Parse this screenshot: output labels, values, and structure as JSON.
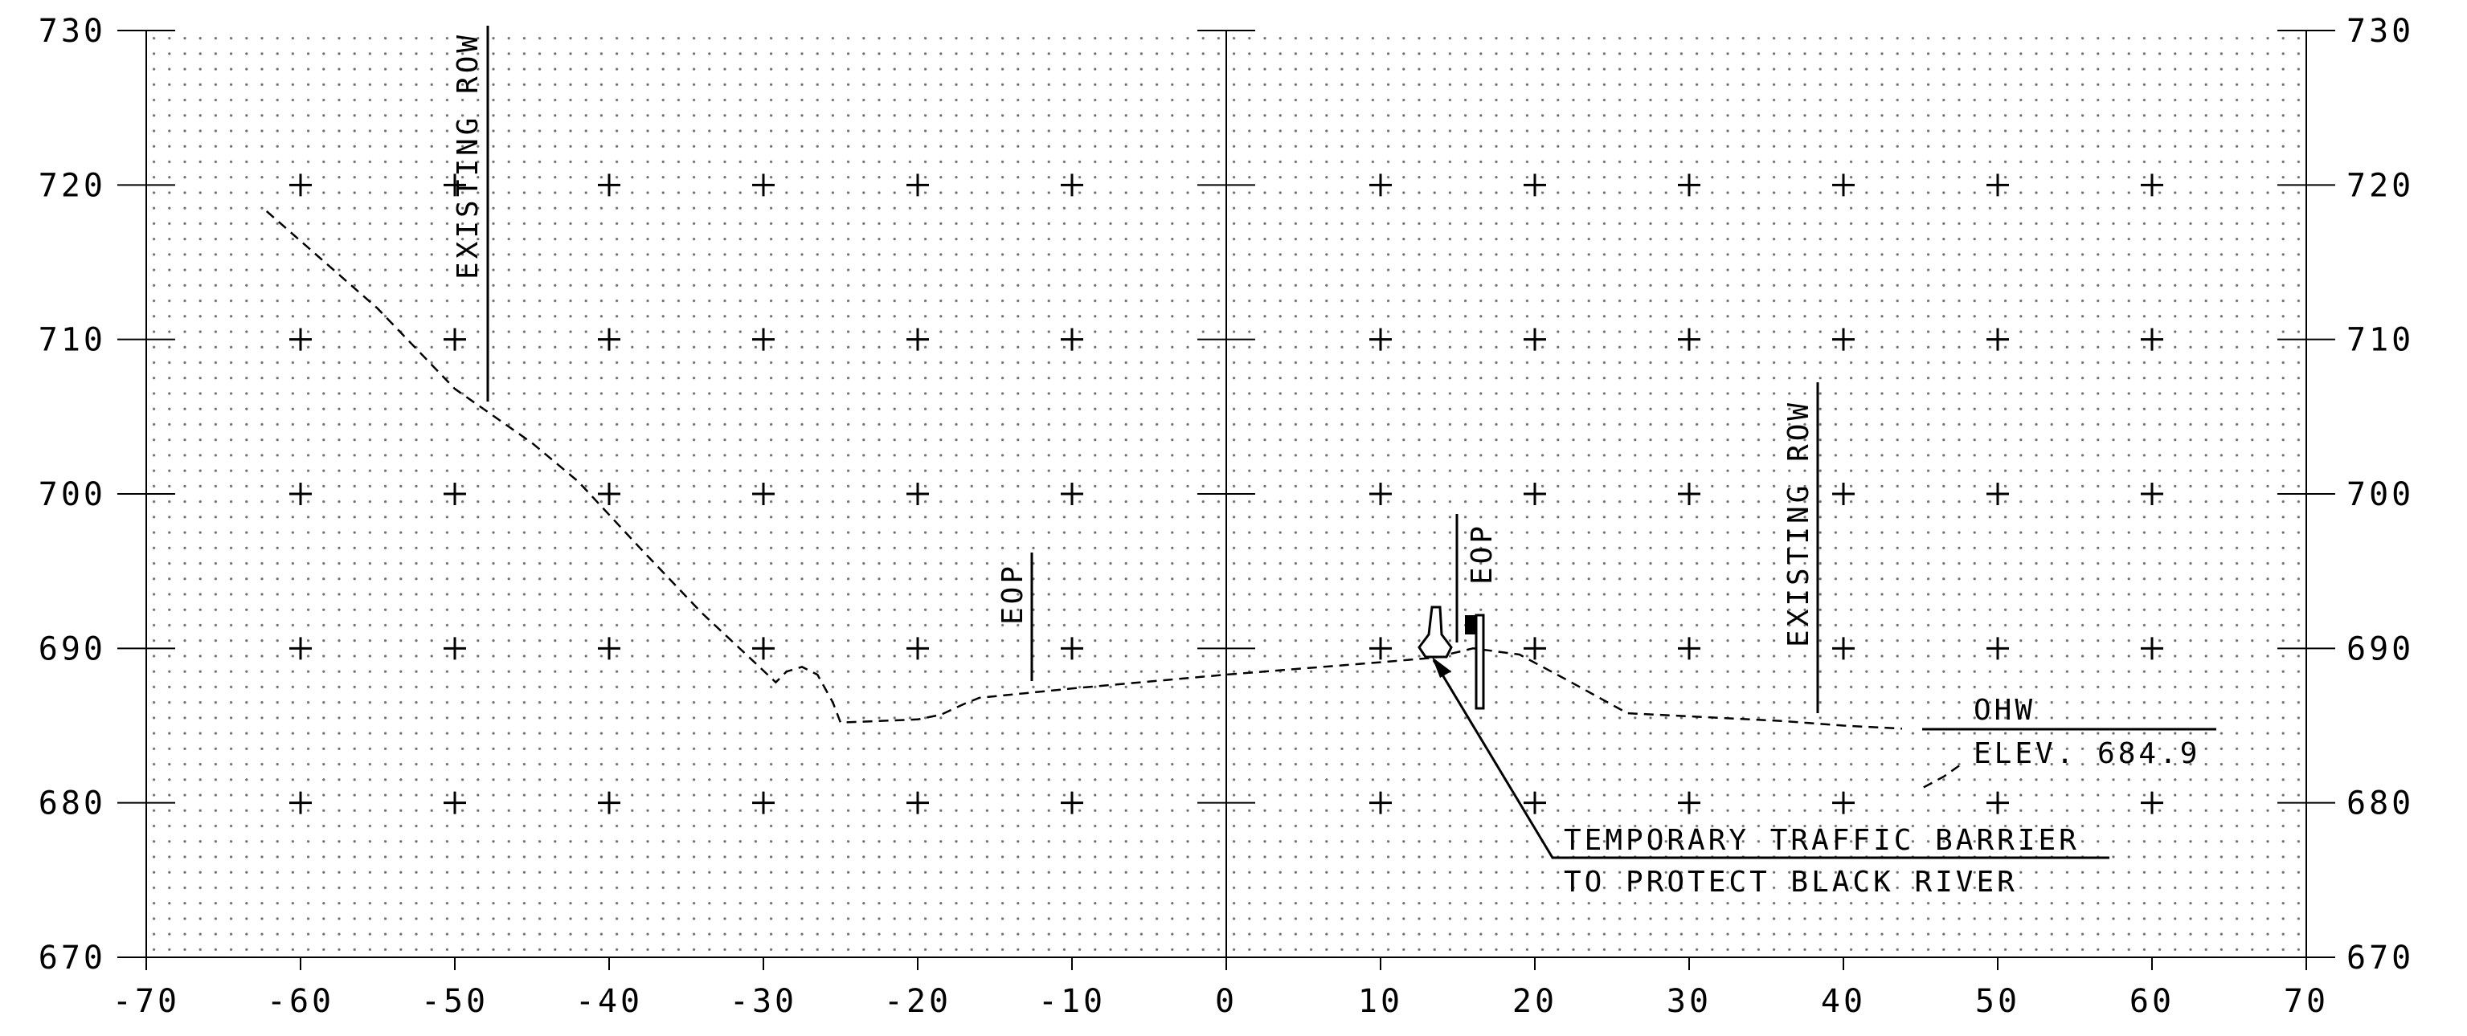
{
  "chart_data": {
    "type": "line",
    "title": "",
    "xlabel": "",
    "ylabel": "",
    "xlim": [
      -70,
      70
    ],
    "ylim": [
      670,
      730
    ],
    "x_ticks": [
      "-70",
      "-60",
      "-50",
      "-40",
      "-30",
      "-20",
      "-10",
      "0",
      "10",
      "20",
      "30",
      "40",
      "50",
      "60",
      "70"
    ],
    "y_ticks": [
      "670",
      "680",
      "690",
      "700",
      "710",
      "720",
      "730"
    ],
    "grid": true,
    "series": [
      {
        "style": "dashed",
        "x": [
          -62.2,
          -55,
          -50,
          -45,
          -42,
          -38,
          -34,
          -31,
          -29.2,
          -28.5,
          -27.5,
          -26.5,
          -25.5,
          -25,
          -20,
          -18.5,
          -17,
          -16,
          -10,
          0,
          5,
          10,
          13.5,
          16,
          19,
          22,
          26,
          30,
          36,
          40,
          43.8
        ],
        "y": [
          718.3,
          712,
          706.8,
          703.3,
          700.8,
          696.5,
          692.3,
          689.5,
          687.8,
          688.5,
          688.8,
          688.3,
          686.5,
          685.2,
          685.4,
          685.7,
          686.4,
          686.8,
          687.4,
          688.3,
          688.7,
          689.1,
          689.4,
          690,
          689.6,
          688,
          685.8,
          685.6,
          685.3,
          685,
          684.8
        ]
      },
      {
        "style": "dashed",
        "x": [
          45.2,
          46.5,
          47.5
        ],
        "y": [
          681,
          681.7,
          682.4
        ]
      }
    ],
    "annotations": {
      "existing_row_left": "EXISTING ROW",
      "existing_row_right": "EXISTING ROW",
      "eop_left": "EOP",
      "eop_right": "EOP",
      "ohw_line1": "OHW",
      "ohw_line2": "ELEV. 684.9",
      "barrier_line1": "TEMPORARY TRAFFIC BARRIER",
      "barrier_line2": "TO PROTECT BLACK RIVER"
    }
  }
}
